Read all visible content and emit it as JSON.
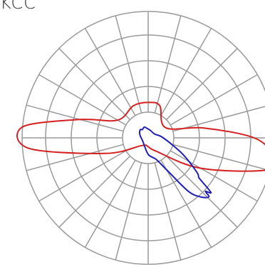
{
  "chart_data": {
    "type": "polar",
    "title": "KCC",
    "rings": 5,
    "radial_lines": 24,
    "grid": true,
    "colors": {
      "grid": "#9a9a9a",
      "series_1": "#d42020",
      "series_2": "#1f1fb8"
    },
    "series": [
      {
        "color": "#d42020",
        "points": [
          [
            0,
            0.07
          ],
          [
            30,
            0.12
          ],
          [
            60,
            0.48
          ],
          [
            75,
            0.98
          ],
          [
            82,
            1.0
          ],
          [
            90,
            0.84
          ],
          [
            100,
            0.45
          ],
          [
            120,
            0.16
          ],
          [
            160,
            0.27
          ],
          [
            180,
            0.28
          ],
          [
            205,
            0.28
          ],
          [
            240,
            0.28
          ],
          [
            255,
            0.56
          ],
          [
            265,
            1.0
          ],
          [
            275,
            0.95
          ],
          [
            290,
            0.36
          ],
          [
            320,
            0.08
          ],
          [
            360,
            0.07
          ]
        ]
      },
      {
        "color": "#1f1fb8",
        "points": [
          [
            0,
            0.13
          ],
          [
            20,
            0.18
          ],
          [
            30,
            0.29
          ],
          [
            37,
            0.53
          ],
          [
            42,
            0.63
          ],
          [
            46,
            0.67
          ],
          [
            47,
            0.62
          ],
          [
            49,
            0.66
          ],
          [
            51,
            0.55
          ],
          [
            52,
            0.51
          ],
          [
            55,
            0.47
          ],
          [
            65,
            0.3
          ],
          [
            90,
            0.12
          ],
          [
            120,
            0.06
          ],
          [
            160,
            0.06
          ],
          [
            180,
            0.07
          ],
          [
            200,
            0.09
          ],
          [
            215,
            0.08
          ],
          [
            225,
            0.09
          ],
          [
            250,
            0.07
          ],
          [
            300,
            0.05
          ],
          [
            360,
            0.13
          ]
        ]
      }
    ]
  }
}
